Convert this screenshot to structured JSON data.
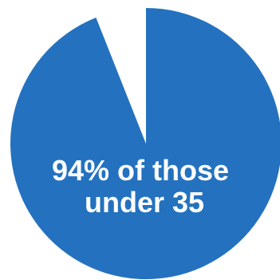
{
  "chart_data": {
    "type": "pie",
    "slices": [
      {
        "value": 94,
        "color": "#2472bf"
      },
      {
        "value": 6,
        "color": "#ffffff"
      }
    ],
    "annotation": {
      "line1": "94% of those",
      "line2": "under 35"
    }
  }
}
